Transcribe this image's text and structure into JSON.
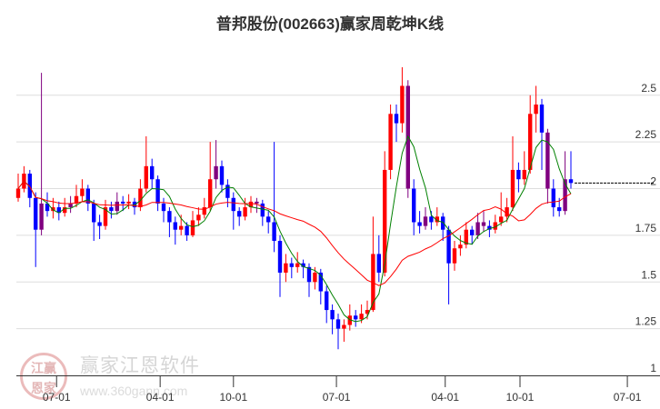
{
  "chart_data": {
    "type": "candlestick",
    "title": "普邦股份(002663)赢家周乾坤K线",
    "ylim": [
      1,
      2.6
    ],
    "yticks": [
      1,
      1.25,
      1.5,
      1.75,
      2,
      2.25,
      2.5
    ],
    "ytick_labels": [
      "1",
      "1.25",
      "1.5",
      "1.75",
      "2",
      "2.25",
      "2.5"
    ],
    "xticks": [
      {
        "i": 6.6,
        "label": "07-01"
      },
      {
        "i": 24.4,
        "label": "04-01"
      },
      {
        "i": 37,
        "label": "10-01"
      },
      {
        "i": 54.7,
        "label": "07-01"
      },
      {
        "i": 73.4,
        "label": "04-01"
      },
      {
        "i": 86.25,
        "label": "10-01"
      },
      {
        "i": 104.7,
        "label": "07-01"
      }
    ],
    "grid": true,
    "colors": {
      "up": "#ff0000",
      "down": "#0000ff",
      "special": "#800080",
      "ma_short": "#008000",
      "ma_long": "#ff0000"
    },
    "ma_periods": [
      5,
      20
    ],
    "last_price": 2.03,
    "purple_indices": [
      4,
      9,
      17,
      34,
      41,
      67,
      70,
      79,
      80,
      91,
      94
    ],
    "ohlc": [
      [
        1.95,
        2.08,
        1.93,
        2.0
      ],
      [
        2.0,
        2.12,
        1.98,
        2.08
      ],
      [
        2.08,
        2.1,
        1.9,
        1.95
      ],
      [
        1.95,
        1.98,
        1.58,
        1.78
      ],
      [
        1.78,
        2.62,
        1.75,
        1.92
      ],
      [
        1.92,
        1.98,
        1.85,
        1.88
      ],
      [
        1.88,
        1.95,
        1.84,
        1.9
      ],
      [
        1.9,
        1.93,
        1.83,
        1.87
      ],
      [
        1.87,
        1.95,
        1.85,
        1.9
      ],
      [
        1.9,
        1.96,
        1.87,
        1.92
      ],
      [
        1.92,
        2.02,
        1.9,
        1.96
      ],
      [
        1.96,
        2.05,
        1.93,
        2.0
      ],
      [
        2.0,
        2.02,
        1.88,
        1.92
      ],
      [
        1.92,
        1.94,
        1.72,
        1.82
      ],
      [
        1.82,
        1.86,
        1.73,
        1.8
      ],
      [
        1.8,
        1.94,
        1.78,
        1.9
      ],
      [
        1.9,
        1.93,
        1.84,
        1.88
      ],
      [
        1.88,
        1.98,
        1.86,
        1.93
      ],
      [
        1.93,
        1.96,
        1.88,
        1.92
      ],
      [
        1.92,
        1.97,
        1.89,
        1.93
      ],
      [
        1.93,
        1.95,
        1.86,
        1.9
      ],
      [
        1.9,
        2.05,
        1.88,
        2.0
      ],
      [
        2.0,
        2.28,
        1.98,
        2.12
      ],
      [
        2.12,
        2.16,
        2.0,
        2.05
      ],
      [
        2.05,
        2.07,
        1.88,
        1.92
      ],
      [
        1.92,
        1.95,
        1.82,
        1.88
      ],
      [
        1.88,
        1.9,
        1.74,
        1.82
      ],
      [
        1.82,
        1.85,
        1.7,
        1.78
      ],
      [
        1.78,
        1.86,
        1.75,
        1.8
      ],
      [
        1.8,
        1.82,
        1.72,
        1.75
      ],
      [
        1.75,
        1.88,
        1.74,
        1.83
      ],
      [
        1.83,
        1.9,
        1.8,
        1.86
      ],
      [
        1.86,
        1.95,
        1.84,
        1.9
      ],
      [
        1.9,
        2.25,
        1.88,
        2.05
      ],
      [
        2.05,
        2.26,
        2.0,
        2.12
      ],
      [
        2.12,
        2.15,
        1.98,
        2.02
      ],
      [
        2.02,
        2.05,
        1.9,
        1.95
      ],
      [
        1.95,
        1.98,
        1.78,
        1.88
      ],
      [
        1.88,
        1.9,
        1.8,
        1.85
      ],
      [
        1.85,
        1.95,
        1.83,
        1.9
      ],
      [
        1.9,
        1.96,
        1.87,
        1.93
      ],
      [
        1.93,
        1.95,
        1.87,
        1.92
      ],
      [
        1.92,
        1.94,
        1.8,
        1.85
      ],
      [
        1.85,
        1.88,
        1.76,
        1.82
      ],
      [
        1.82,
        2.25,
        1.66,
        1.72
      ],
      [
        1.72,
        1.75,
        1.42,
        1.55
      ],
      [
        1.55,
        1.65,
        1.5,
        1.6
      ],
      [
        1.6,
        1.63,
        1.52,
        1.58
      ],
      [
        1.58,
        1.66,
        1.55,
        1.6
      ],
      [
        1.6,
        1.62,
        1.52,
        1.58
      ],
      [
        1.58,
        1.6,
        1.42,
        1.5
      ],
      [
        1.5,
        1.58,
        1.46,
        1.55
      ],
      [
        1.55,
        1.57,
        1.38,
        1.45
      ],
      [
        1.45,
        1.48,
        1.28,
        1.35
      ],
      [
        1.35,
        1.38,
        1.22,
        1.3
      ],
      [
        1.3,
        1.33,
        1.14,
        1.25
      ],
      [
        1.25,
        1.3,
        1.18,
        1.27
      ],
      [
        1.27,
        1.38,
        1.24,
        1.32
      ],
      [
        1.32,
        1.35,
        1.26,
        1.3
      ],
      [
        1.3,
        1.38,
        1.28,
        1.33
      ],
      [
        1.33,
        1.4,
        1.3,
        1.35
      ],
      [
        1.35,
        1.85,
        1.34,
        1.65
      ],
      [
        1.65,
        1.75,
        1.5,
        1.55
      ],
      [
        1.55,
        2.2,
        1.53,
        2.1
      ],
      [
        2.1,
        2.45,
        2.05,
        2.4
      ],
      [
        2.4,
        2.45,
        2.25,
        2.35
      ],
      [
        2.35,
        2.65,
        2.3,
        2.55
      ],
      [
        2.55,
        2.58,
        1.95,
        2.0
      ],
      [
        2.0,
        2.05,
        1.75,
        1.82
      ],
      [
        1.82,
        1.88,
        1.76,
        1.8
      ],
      [
        1.8,
        1.9,
        1.78,
        1.85
      ],
      [
        1.85,
        1.88,
        1.78,
        1.82
      ],
      [
        1.82,
        1.9,
        1.8,
        1.85
      ],
      [
        1.85,
        1.87,
        1.72,
        1.78
      ],
      [
        1.78,
        1.8,
        1.38,
        1.6
      ],
      [
        1.6,
        1.72,
        1.56,
        1.68
      ],
      [
        1.68,
        1.75,
        1.64,
        1.7
      ],
      [
        1.7,
        1.82,
        1.68,
        1.78
      ],
      [
        1.78,
        1.8,
        1.7,
        1.75
      ],
      [
        1.75,
        1.87,
        1.73,
        1.82
      ],
      [
        1.82,
        1.88,
        1.77,
        1.8
      ],
      [
        1.8,
        1.83,
        1.74,
        1.78
      ],
      [
        1.78,
        1.86,
        1.76,
        1.82
      ],
      [
        1.82,
        1.98,
        1.8,
        1.85
      ],
      [
        1.85,
        1.95,
        1.82,
        1.9
      ],
      [
        1.9,
        2.28,
        1.88,
        2.1
      ],
      [
        2.1,
        2.14,
        1.98,
        2.05
      ],
      [
        2.05,
        2.2,
        2.02,
        2.1
      ],
      [
        2.1,
        2.5,
        2.08,
        2.4
      ],
      [
        2.4,
        2.55,
        2.3,
        2.45
      ],
      [
        2.45,
        2.48,
        2.1,
        2.3
      ],
      [
        2.3,
        2.32,
        1.92,
        2.0
      ],
      [
        2.0,
        2.05,
        1.85,
        1.9
      ],
      [
        1.9,
        1.95,
        1.85,
        1.88
      ],
      [
        1.88,
        2.2,
        1.86,
        2.05
      ],
      [
        2.05,
        2.2,
        2.0,
        2.03
      ]
    ]
  },
  "watermark": {
    "brand": "赢家江恩软件",
    "url": "www.360gann.com",
    "seal": "江赢恩家"
  }
}
